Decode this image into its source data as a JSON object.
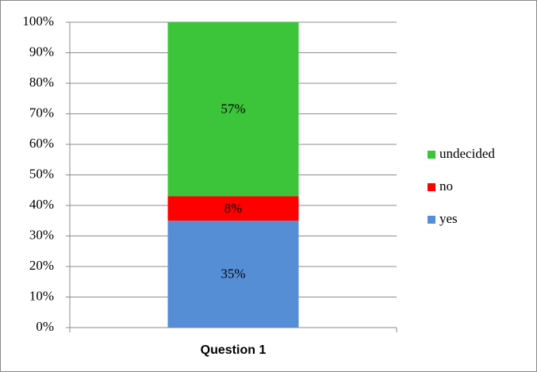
{
  "chart_data": {
    "type": "stacked_bar",
    "categories": [
      "Question 1"
    ],
    "series": [
      {
        "name": "yes",
        "color": "#558ed5",
        "values": [
          35
        ],
        "value_labels": [
          "35%"
        ]
      },
      {
        "name": "no",
        "color": "#ff0000",
        "values": [
          8
        ],
        "value_labels": [
          "8%"
        ]
      },
      {
        "name": "undecided",
        "color": "#3cc43a",
        "values": [
          57
        ],
        "value_labels": [
          "57%"
        ]
      }
    ],
    "ylim": [
      0,
      100
    ],
    "yticks": [
      {
        "value": 0,
        "label": "0%"
      },
      {
        "value": 10,
        "label": "10%"
      },
      {
        "value": 20,
        "label": "20%"
      },
      {
        "value": 30,
        "label": "30%"
      },
      {
        "value": 40,
        "label": "40%"
      },
      {
        "value": 50,
        "label": "50%"
      },
      {
        "value": 60,
        "label": "60%"
      },
      {
        "value": 70,
        "label": "70%"
      },
      {
        "value": 80,
        "label": "80%"
      },
      {
        "value": 90,
        "label": "90%"
      },
      {
        "value": 100,
        "label": "100%"
      }
    ],
    "grid": true,
    "legend": "right"
  }
}
